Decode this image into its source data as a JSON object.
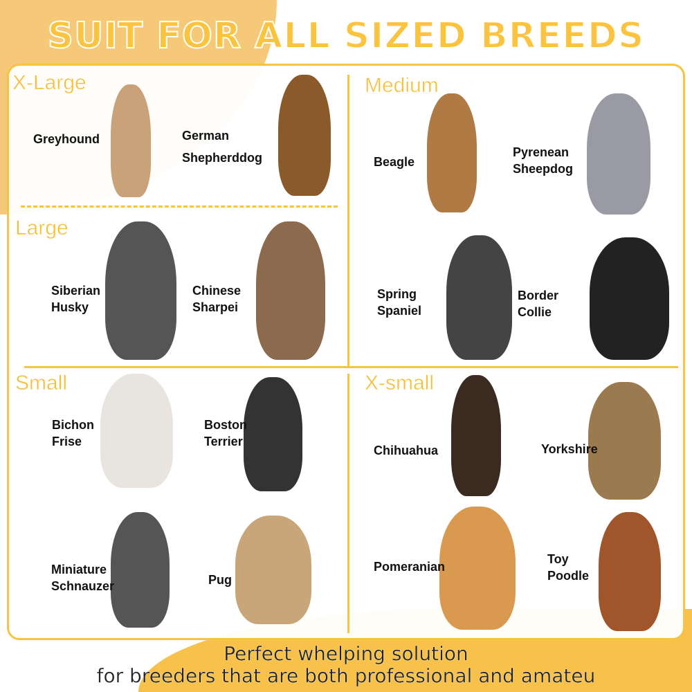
{
  "title": "SUIT FOR ALL SIZED BREEDS",
  "sections": {
    "xlarge": "X-Large",
    "medium": "Medium",
    "large": "Large",
    "small": "Small",
    "xsmall": "X-small"
  },
  "breeds": {
    "greyhound": "Greyhound",
    "german_shepherd": "German\nShepherddog",
    "beagle": "Beagle",
    "pyrenean": "Pyrenean\nSheepdog",
    "husky": "Siberian\nHusky",
    "sharpei": "Chinese\nSharpei",
    "spring": "Spring\nSpaniel",
    "border": "Border\nCollie",
    "bichon": "Bichon\nFrise",
    "boston": "Boston\nTerrier",
    "schnauzer": "Miniature\nSchnauzer",
    "pug": "Pug",
    "chihuahua": "Chihuahua",
    "yorkshire": "Yorkshire",
    "pomeranian": "Pomeranian",
    "poodle": "Toy\nPoodle"
  },
  "footer": {
    "line1": "Perfect whelping solution",
    "line2": "for breeders that are both professional and amateu"
  },
  "colors": {
    "accent": "#f6c342",
    "title": "#fcc33e"
  }
}
